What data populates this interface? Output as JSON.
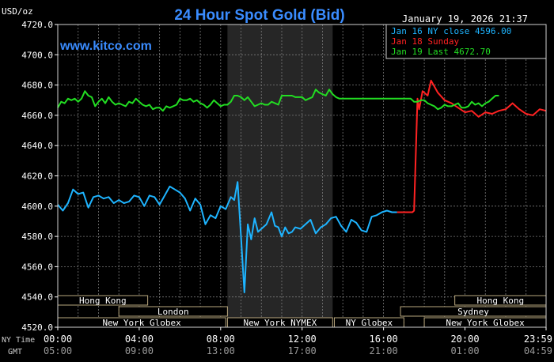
{
  "chart_data": {
    "type": "line",
    "title": "24 Hour Spot Gold (Bid)",
    "timestamp": "January 19, 2026 21:37",
    "ylabel": "USD/oz",
    "watermark": "www.kitco.com",
    "ylim": [
      4520,
      4720
    ],
    "yticks": [
      "4720.0",
      "4700.0",
      "4680.0",
      "4660.0",
      "4640.0",
      "4620.0",
      "4600.0",
      "4580.0",
      "4560.0",
      "4540.0",
      "4520.0"
    ],
    "xlim": [
      0,
      1439
    ],
    "ny_label": "NY Time",
    "gmt_label": "GMT",
    "xticks_ny": [
      "00:00",
      "04:00",
      "08:00",
      "12:00",
      "16:00",
      "20:00",
      "23:59"
    ],
    "xticks_gmt": [
      "05:00",
      "09:00",
      "13:00",
      "17:00",
      "21:00",
      "01:00",
      "04:59"
    ],
    "xtick_minutes": [
      0,
      240,
      480,
      720,
      960,
      1200,
      1439
    ],
    "nymex_shade": [
      500,
      810
    ],
    "legend": [
      {
        "label": "Jan 16 NY close 4596.00",
        "color": "#1eb4ff"
      },
      {
        "label": "Jan 18 Sunday",
        "color": "#ff2222"
      },
      {
        "label": "Jan 19 Last 4672.70",
        "color": "#22dd22"
      }
    ],
    "sessions": [
      {
        "name": "Hong Kong",
        "start": 0,
        "end": 265,
        "row": 0
      },
      {
        "name": "London",
        "start": 180,
        "end": 500,
        "row": 1
      },
      {
        "name": "New York Globex",
        "start": 0,
        "end": 495,
        "row": 2
      },
      {
        "name": "New York NYMEX",
        "start": 500,
        "end": 810,
        "row": 2
      },
      {
        "name": "NY Globex",
        "start": 815,
        "end": 1020,
        "row": 2
      },
      {
        "name": "Hong Kong",
        "start": 1170,
        "end": 1439,
        "row": 0
      },
      {
        "name": "Sydney",
        "start": 1010,
        "end": 1439,
        "row": 1
      },
      {
        "name": "New York Globex",
        "start": 1080,
        "end": 1439,
        "row": 2
      }
    ],
    "series": [
      {
        "name": "Jan 16 NY close 4596.00",
        "color": "#1eb4ff",
        "x": [
          0,
          15,
          30,
          45,
          60,
          75,
          90,
          105,
          120,
          135,
          150,
          165,
          180,
          195,
          210,
          225,
          240,
          255,
          270,
          285,
          300,
          315,
          330,
          345,
          360,
          375,
          390,
          405,
          420,
          435,
          450,
          465,
          480,
          495,
          510,
          520,
          530,
          540,
          550,
          560,
          570,
          580,
          590,
          600,
          615,
          630,
          640,
          650,
          660,
          670,
          680,
          690,
          700,
          715,
          730,
          745,
          760,
          775,
          790,
          805,
          820,
          835,
          850,
          865,
          880,
          895,
          910,
          925,
          940,
          955,
          970,
          985,
          1000
        ],
        "values": [
          4601,
          4597,
          4602,
          4611,
          4608,
          4609,
          4599,
          4606,
          4607,
          4605,
          4606,
          4602,
          4604,
          4602,
          4603,
          4607,
          4606,
          4600,
          4607,
          4606,
          4601,
          4607,
          4613,
          4611,
          4609,
          4605,
          4597,
          4605,
          4601,
          4588,
          4594,
          4592,
          4600,
          4598,
          4606,
          4604,
          4616,
          4580,
          4543,
          4588,
          4578,
          4592,
          4583,
          4585,
          4588,
          4596,
          4587,
          4586,
          4580,
          4586,
          4582,
          4583,
          4586,
          4585,
          4588,
          4591,
          4582,
          4586,
          4588,
          4592,
          4593,
          4587,
          4583,
          4591,
          4589,
          4584,
          4583,
          4593,
          4594,
          4596,
          4597,
          4596,
          4596
        ]
      },
      {
        "name": "Jan 18 Sunday",
        "color": "#ff2222",
        "x": [
          1000,
          1040,
          1045,
          1050,
          1060,
          1065,
          1075,
          1090,
          1100,
          1110,
          1120,
          1140,
          1160,
          1180,
          1200,
          1220,
          1240,
          1260,
          1280,
          1300,
          1320,
          1340,
          1360,
          1380,
          1400,
          1420,
          1439
        ],
        "values": [
          4596,
          4596,
          4596,
          4597,
          4671,
          4664,
          4676,
          4673,
          4683,
          4679,
          4675,
          4670,
          4668,
          4665,
          4662,
          4663,
          4659,
          4662,
          4661,
          4663,
          4664,
          4668,
          4664,
          4661,
          4660,
          4664,
          4663
        ]
      },
      {
        "name": "Jan 19 Last 4672.70",
        "color": "#22dd22",
        "x": [
          0,
          10,
          20,
          30,
          40,
          50,
          60,
          70,
          80,
          90,
          100,
          110,
          120,
          130,
          140,
          150,
          160,
          170,
          180,
          190,
          200,
          210,
          220,
          230,
          240,
          250,
          260,
          270,
          280,
          290,
          300,
          310,
          320,
          330,
          340,
          350,
          360,
          370,
          380,
          390,
          400,
          410,
          420,
          430,
          440,
          450,
          460,
          470,
          480,
          490,
          500,
          510,
          520,
          530,
          540,
          550,
          560,
          570,
          580,
          590,
          600,
          610,
          620,
          630,
          640,
          650,
          660,
          670,
          680,
          690,
          700,
          710,
          720,
          730,
          740,
          750,
          760,
          770,
          780,
          790,
          800,
          810,
          820,
          830,
          840,
          850,
          860,
          870,
          880,
          890,
          900,
          910,
          920,
          930,
          940,
          950,
          960,
          970,
          980,
          990,
          1000,
          1010,
          1020,
          1030,
          1040,
          1050,
          1060,
          1070,
          1080,
          1090,
          1100,
          1110,
          1120,
          1130,
          1140,
          1150,
          1160,
          1170,
          1180,
          1190,
          1200,
          1210,
          1220,
          1230,
          1240,
          1250,
          1260,
          1270,
          1280,
          1290,
          1300
        ],
        "values": [
          4665,
          4669,
          4668,
          4671,
          4670,
          4671,
          4669,
          4671,
          4676,
          4673,
          4672,
          4666,
          4669,
          4671,
          4668,
          4672,
          4669,
          4667,
          4668,
          4667,
          4666,
          4669,
          4668,
          4671,
          4669,
          4667,
          4666,
          4667,
          4664,
          4665,
          4665,
          4663,
          4666,
          4665,
          4666,
          4667,
          4671,
          4670,
          4670,
          4671,
          4669,
          4670,
          4668,
          4667,
          4665,
          4667,
          4670,
          4668,
          4666,
          4667,
          4667,
          4669,
          4673,
          4673,
          4672,
          4670,
          4672,
          4669,
          4666,
          4667,
          4668,
          4667,
          4667,
          4669,
          4668,
          4667,
          4673,
          4673,
          4673,
          4673,
          4672,
          4672,
          4672,
          4670,
          4671,
          4672,
          4677,
          4675,
          4674,
          4673,
          4677,
          4674,
          4672,
          4671,
          4671,
          4671,
          4671,
          4671,
          4671,
          4671,
          4671,
          4671,
          4671,
          4671,
          4671,
          4671,
          4671,
          4671,
          4671,
          4671,
          4671,
          4671,
          4671,
          4671,
          4671,
          4669,
          4669,
          4670,
          4670,
          4668,
          4667,
          4666,
          4664,
          4665,
          4667,
          4666,
          4666,
          4667,
          4668,
          4665,
          4665,
          4666,
          4669,
          4667,
          4668,
          4666,
          4668,
          4669,
          4671,
          4673,
          4673
        ]
      }
    ]
  }
}
